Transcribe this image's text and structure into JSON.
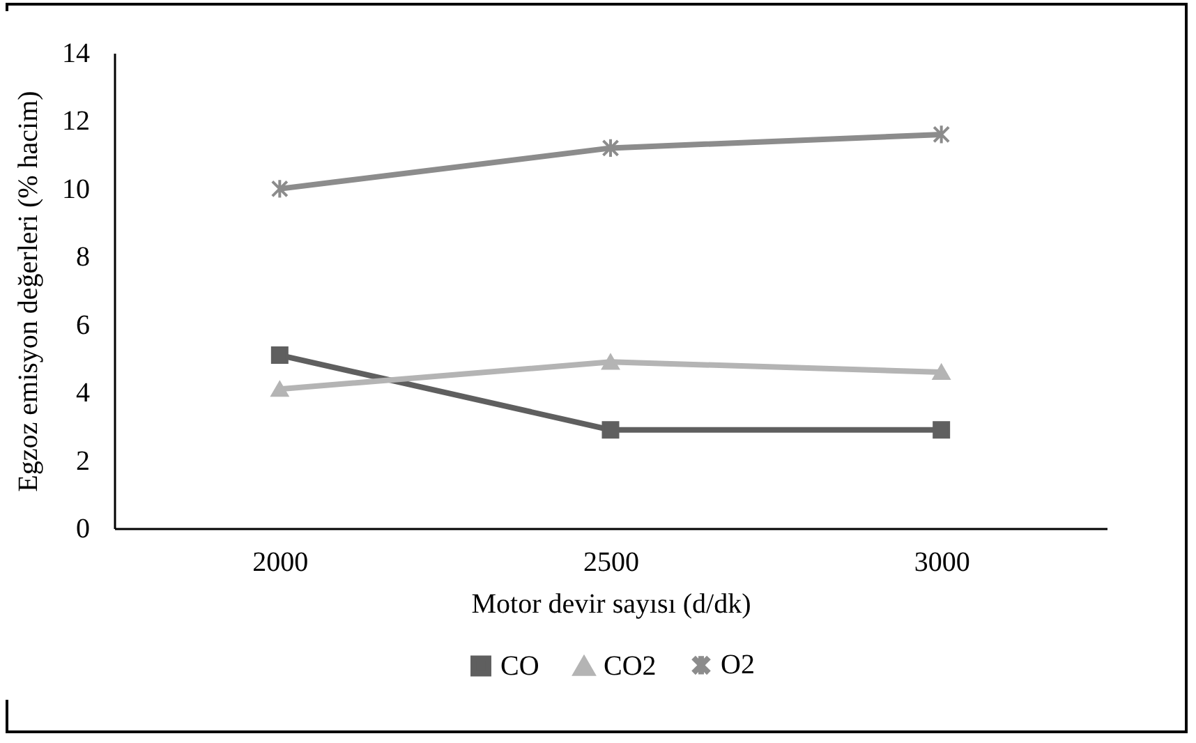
{
  "chart_data": {
    "type": "line",
    "xlabel": "Motor devir sayısı (d/dk)",
    "ylabel": "Egzoz emisyon değerleri (% hacim)",
    "categories": [
      "2000",
      "2500",
      "3000"
    ],
    "series": [
      {
        "name": "CO",
        "color": "#5f5f5f",
        "marker": "square",
        "values": [
          5.1,
          2.9,
          2.9
        ]
      },
      {
        "name": "CO2",
        "color": "#b4b4b4",
        "marker": "triangle",
        "values": [
          4.1,
          4.9,
          4.6
        ]
      },
      {
        "name": "O2",
        "color": "#8c8c8c",
        "marker": "cross",
        "values": [
          10.0,
          11.2,
          11.6
        ]
      }
    ],
    "ylim": [
      0,
      14
    ],
    "yticks": [
      0,
      2,
      4,
      6,
      8,
      10,
      12,
      14
    ],
    "grid": false,
    "legend": "bottom",
    "line_style": "solid"
  }
}
